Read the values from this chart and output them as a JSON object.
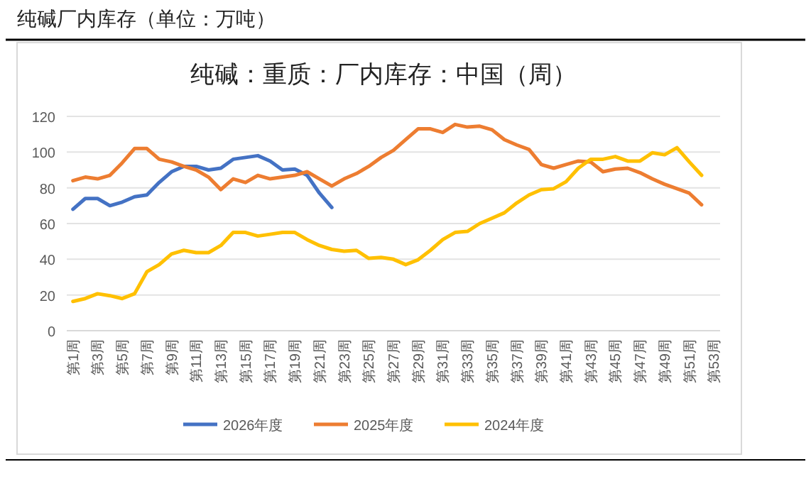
{
  "chart_data": {
    "type": "line",
    "title": "纯碱厂内库存（单位：万吨）",
    "subtitle": "纯碱：重质：厂内库存：中国（周）",
    "categories": [
      "第1周",
      null,
      "第3周",
      null,
      "第5周",
      null,
      "第7周",
      null,
      "第9周",
      null,
      "第11周",
      null,
      "第13周",
      null,
      "第15周",
      null,
      "第17周",
      null,
      "第19周",
      null,
      "第21周",
      null,
      "第23周",
      null,
      "第25周",
      null,
      "第27周",
      null,
      "第29周",
      null,
      "第31周",
      null,
      "第33周",
      null,
      "第35周",
      null,
      "第37周",
      null,
      "第39周",
      null,
      "第41周",
      null,
      "第43周",
      null,
      "第45周",
      null,
      "第47周",
      null,
      "第49周",
      null,
      "第51周",
      null,
      "第53周"
    ],
    "series": [
      {
        "name": "2026年度",
        "color": "#4472c4",
        "values": [
          68,
          74,
          74,
          70,
          72,
          75,
          76,
          83,
          89,
          92,
          92,
          90,
          91,
          96,
          97,
          98,
          95,
          90,
          90.5,
          87,
          77,
          69,
          null,
          null,
          null,
          null,
          null,
          null,
          null,
          null,
          null,
          null,
          null,
          null,
          null,
          null,
          null,
          null,
          null,
          null,
          null,
          null,
          null,
          null,
          null,
          null,
          null,
          null,
          null,
          null,
          null,
          null,
          null
        ]
      },
      {
        "name": "2025年度",
        "color": "#ed7d31",
        "values": [
          84,
          86,
          85,
          87,
          94,
          102,
          102,
          96,
          94.5,
          92,
          90,
          86,
          79,
          85,
          83,
          87,
          85,
          86,
          87,
          89,
          85,
          81,
          85,
          88,
          92,
          97,
          101,
          107,
          113,
          113,
          111,
          115.5,
          114,
          114.5,
          112.5,
          107,
          104,
          101.5,
          93,
          91,
          93,
          95,
          94.5,
          89,
          90.5,
          91,
          88.5,
          85,
          82,
          79.5,
          77,
          70.5,
          null
        ]
      },
      {
        "name": "2024年度",
        "color": "#ffc000",
        "values": [
          16.4,
          18,
          20.7,
          19.6,
          18,
          20.7,
          33,
          37,
          43,
          45,
          43.7,
          43.7,
          47.7,
          55,
          55,
          53,
          54,
          55,
          55,
          51,
          47.7,
          45.5,
          44.5,
          45,
          40.5,
          41,
          40,
          37,
          39.7,
          45,
          51,
          55,
          55.6,
          60,
          63,
          66,
          71.5,
          76,
          79,
          79.5,
          83.4,
          91,
          96,
          96,
          97.5,
          95,
          95,
          99.6,
          98.5,
          102.5,
          94.5,
          87,
          null
        ]
      }
    ],
    "ylim": [
      0,
      120
    ],
    "yticks": [
      0,
      20,
      40,
      60,
      80,
      100,
      120
    ],
    "grid": "y",
    "legend": "bottom"
  }
}
